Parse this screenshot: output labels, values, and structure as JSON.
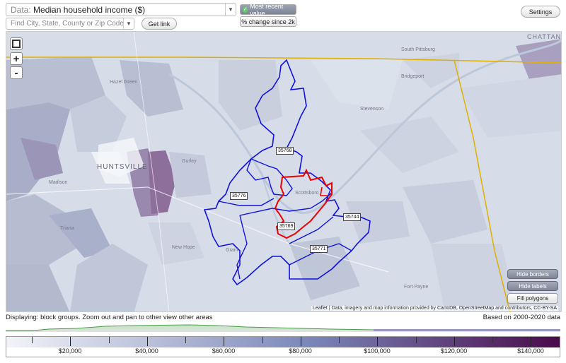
{
  "toolbar": {
    "data_prefix": "Data:",
    "data_value": "Median household income ($)",
    "search_placeholder": "Find City, State, County or Zip Code",
    "get_link": "Get link",
    "most_recent": "Most recent value",
    "pct_change": "% change since 2k",
    "settings": "Settings"
  },
  "map": {
    "zoom_in": "+",
    "zoom_out": "-",
    "places": [
      "CHATTAN",
      "South Pittsburg",
      "Hazel Green",
      "Bridgeport",
      "Stevenson",
      "HUNTSVILLE",
      "Madison",
      "Gurley",
      "Scottsboro",
      "Triana",
      "New Hope",
      "Grant",
      "Fort Payne"
    ],
    "zip_labels": [
      "35768",
      "35776",
      "35769",
      "35744",
      "35771"
    ],
    "buttons": {
      "hide_borders": "Hide borders",
      "hide_labels": "Hide labels",
      "fill_polygons": "Fill polygons"
    },
    "attribution": {
      "leaflet": "Leaflet",
      "text1": " | Data, imagery and map information provided by ",
      "cartodb": "CartoDB",
      "text2": ", ",
      "osm": "OpenStreetMap",
      "text3": " and contributors, ",
      "license": "CC-BY-SA"
    }
  },
  "status": {
    "displaying": "Displaying: block groups. Zoom out and pan to other view other areas",
    "based_on": "Based on 2000-2020 data"
  },
  "legend": {
    "ticks": [
      "$20,000",
      "$40,000",
      "$60,000",
      "$80,000",
      "$100,000",
      "$120,000",
      "$140,000"
    ],
    "color_low": "#f2f4f8",
    "color_mid": "#7a86b8",
    "color_high": "#4a0a4a"
  },
  "colors": {
    "zip_border": "#1111dd",
    "selected_border": "#ee0000",
    "state_line": "#e0b000"
  }
}
